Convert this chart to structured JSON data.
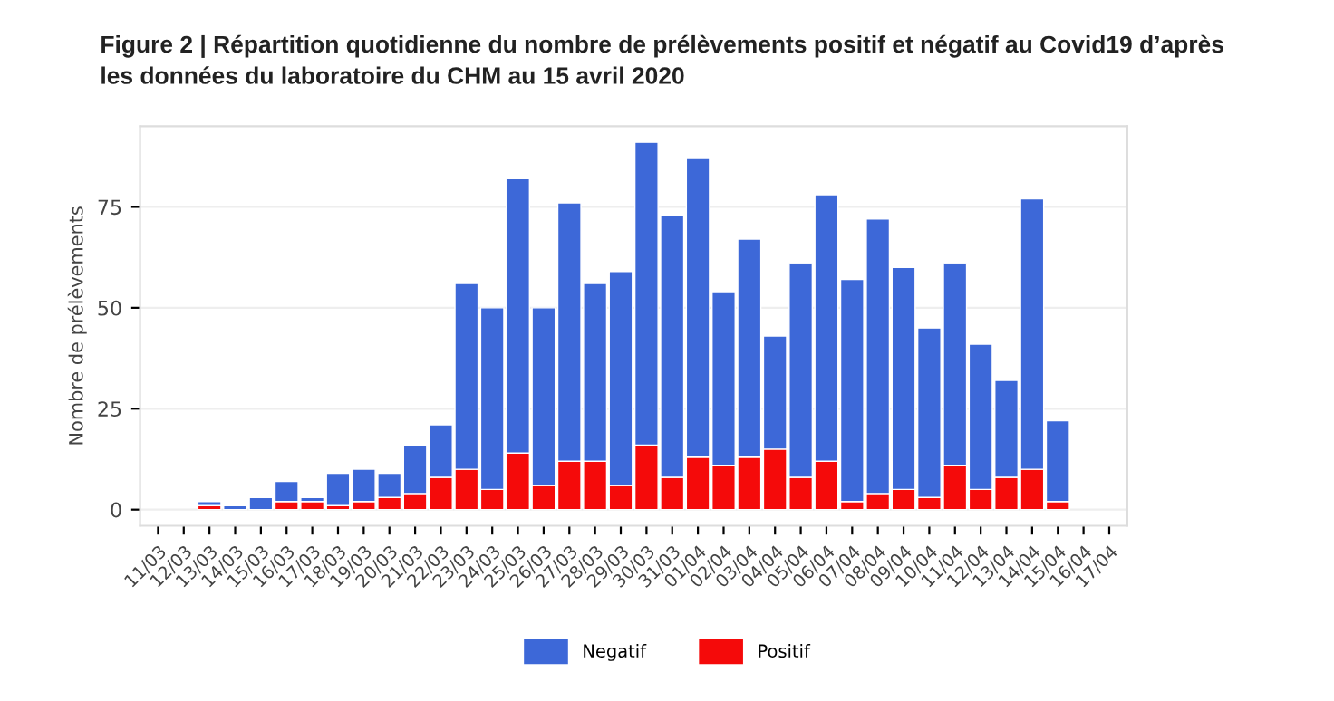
{
  "chart_data": {
    "type": "bar",
    "title": "Figure 2 | Répartition quotidienne du nombre de prélèvements positif et négatif au Covid19 d’après\nles données du laboratoire du CHM au 15 avril 2020",
    "ylabel": "Nombre de prélèvements",
    "categories": [
      "11/03",
      "12/03",
      "13/03",
      "14/03",
      "15/03",
      "16/03",
      "17/03",
      "18/03",
      "19/03",
      "20/03",
      "21/03",
      "22/03",
      "23/03",
      "24/03",
      "25/03",
      "26/03",
      "27/03",
      "28/03",
      "29/03",
      "30/03",
      "31/03",
      "01/04",
      "02/04",
      "03/04",
      "04/04",
      "05/04",
      "06/04",
      "07/04",
      "08/04",
      "09/04",
      "10/04",
      "11/04",
      "12/04",
      "13/04",
      "14/04",
      "15/04",
      "16/04",
      "17/04"
    ],
    "stacked": true,
    "series": [
      {
        "name": "Positif",
        "color": "#f50a0a",
        "values": [
          null,
          null,
          1,
          null,
          null,
          2,
          2,
          1,
          2,
          3,
          4,
          8,
          10,
          5,
          14,
          6,
          12,
          12,
          6,
          16,
          8,
          13,
          11,
          13,
          15,
          8,
          12,
          2,
          4,
          5,
          3,
          11,
          5,
          8,
          10,
          2,
          null,
          null
        ]
      },
      {
        "name": "Negatif",
        "color": "#3d68d8",
        "values": [
          null,
          null,
          1,
          1,
          3,
          5,
          1,
          8,
          8,
          6,
          12,
          13,
          46,
          45,
          68,
          44,
          64,
          44,
          53,
          75,
          65,
          74,
          43,
          54,
          28,
          53,
          66,
          55,
          68,
          55,
          42,
          50,
          36,
          24,
          67,
          20,
          null,
          null
        ]
      }
    ],
    "ylim": [
      -4,
      95
    ],
    "yticks": [
      0,
      25,
      50,
      75
    ],
    "grid": "y",
    "legend": "bottom"
  }
}
